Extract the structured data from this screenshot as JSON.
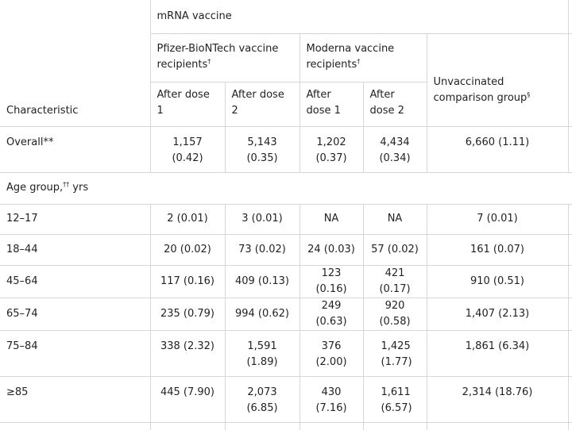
{
  "header": {
    "group_label": "mRNA vaccine",
    "pfizer_label": "Pfizer-BioNTech vaccine recipients",
    "pfizer_mark": "†",
    "moderna_label": "Moderna vaccine recipients",
    "moderna_mark": "†",
    "characteristic": "Characteristic",
    "after_dose_1": "After dose 1",
    "after_dose_2": "After dose 2",
    "after_dose_1_moderna": "After dose 1",
    "after_dose_2_moderna": "After dose 2",
    "unvaccinated": "Unvaccinated comparison group",
    "unvaccinated_mark": "§"
  },
  "overall": {
    "label": "Overall**",
    "pfizer_d1": "1,157 (0.42)",
    "pfizer_d2": "5,143 (0.35)",
    "moderna_d1": "1,202 (0.37)",
    "moderna_d2": "4,434 (0.34)",
    "unvaccinated": "6,660 (1.11)"
  },
  "age_section": {
    "label": "Age group,",
    "mark": "††",
    "unit": " yrs"
  },
  "rows": [
    {
      "label": "12–17",
      "pfizer_d1": "2 (0.01)",
      "pfizer_d2": "3 (0.01)",
      "moderna_d1": "NA",
      "moderna_d2": "NA",
      "unvaccinated": "7 (0.01)"
    },
    {
      "label": "18–44",
      "pfizer_d1": "20 (0.02)",
      "pfizer_d2": "73 (0.02)",
      "moderna_d1": "24 (0.03)",
      "moderna_d2": "57 (0.02)",
      "unvaccinated": "161 (0.07)"
    },
    {
      "label": "45–64",
      "pfizer_d1": "117 (0.16)",
      "pfizer_d2": "409 (0.13)",
      "moderna_d1": "123 (0.16)",
      "moderna_d2": "421 (0.17)",
      "unvaccinated": "910 (0.51)"
    },
    {
      "label": "65–74",
      "pfizer_d1": "235 (0.79)",
      "pfizer_d2": "994 (0.62)",
      "moderna_d1": "249 (0.63)",
      "moderna_d2": "920 (0.58)",
      "unvaccinated": "1,407 (2.13)"
    },
    {
      "label": "75–84",
      "pfizer_d1": "338 (2.32)",
      "pfizer_d2": "1,591 (1.89)",
      "moderna_d1": "376 (2.00)",
      "moderna_d2": "1,425 (1.77)",
      "unvaccinated": "1,861 (6.34)"
    },
    {
      "label": "≥85",
      "pfizer_d1": "445 (7.90)",
      "pfizer_d2": "2,073 (6.85)",
      "moderna_d1": "430 (7.16)",
      "moderna_d2": "1,611 (6.57)",
      "unvaccinated": "2,314 (18.76)"
    }
  ]
}
